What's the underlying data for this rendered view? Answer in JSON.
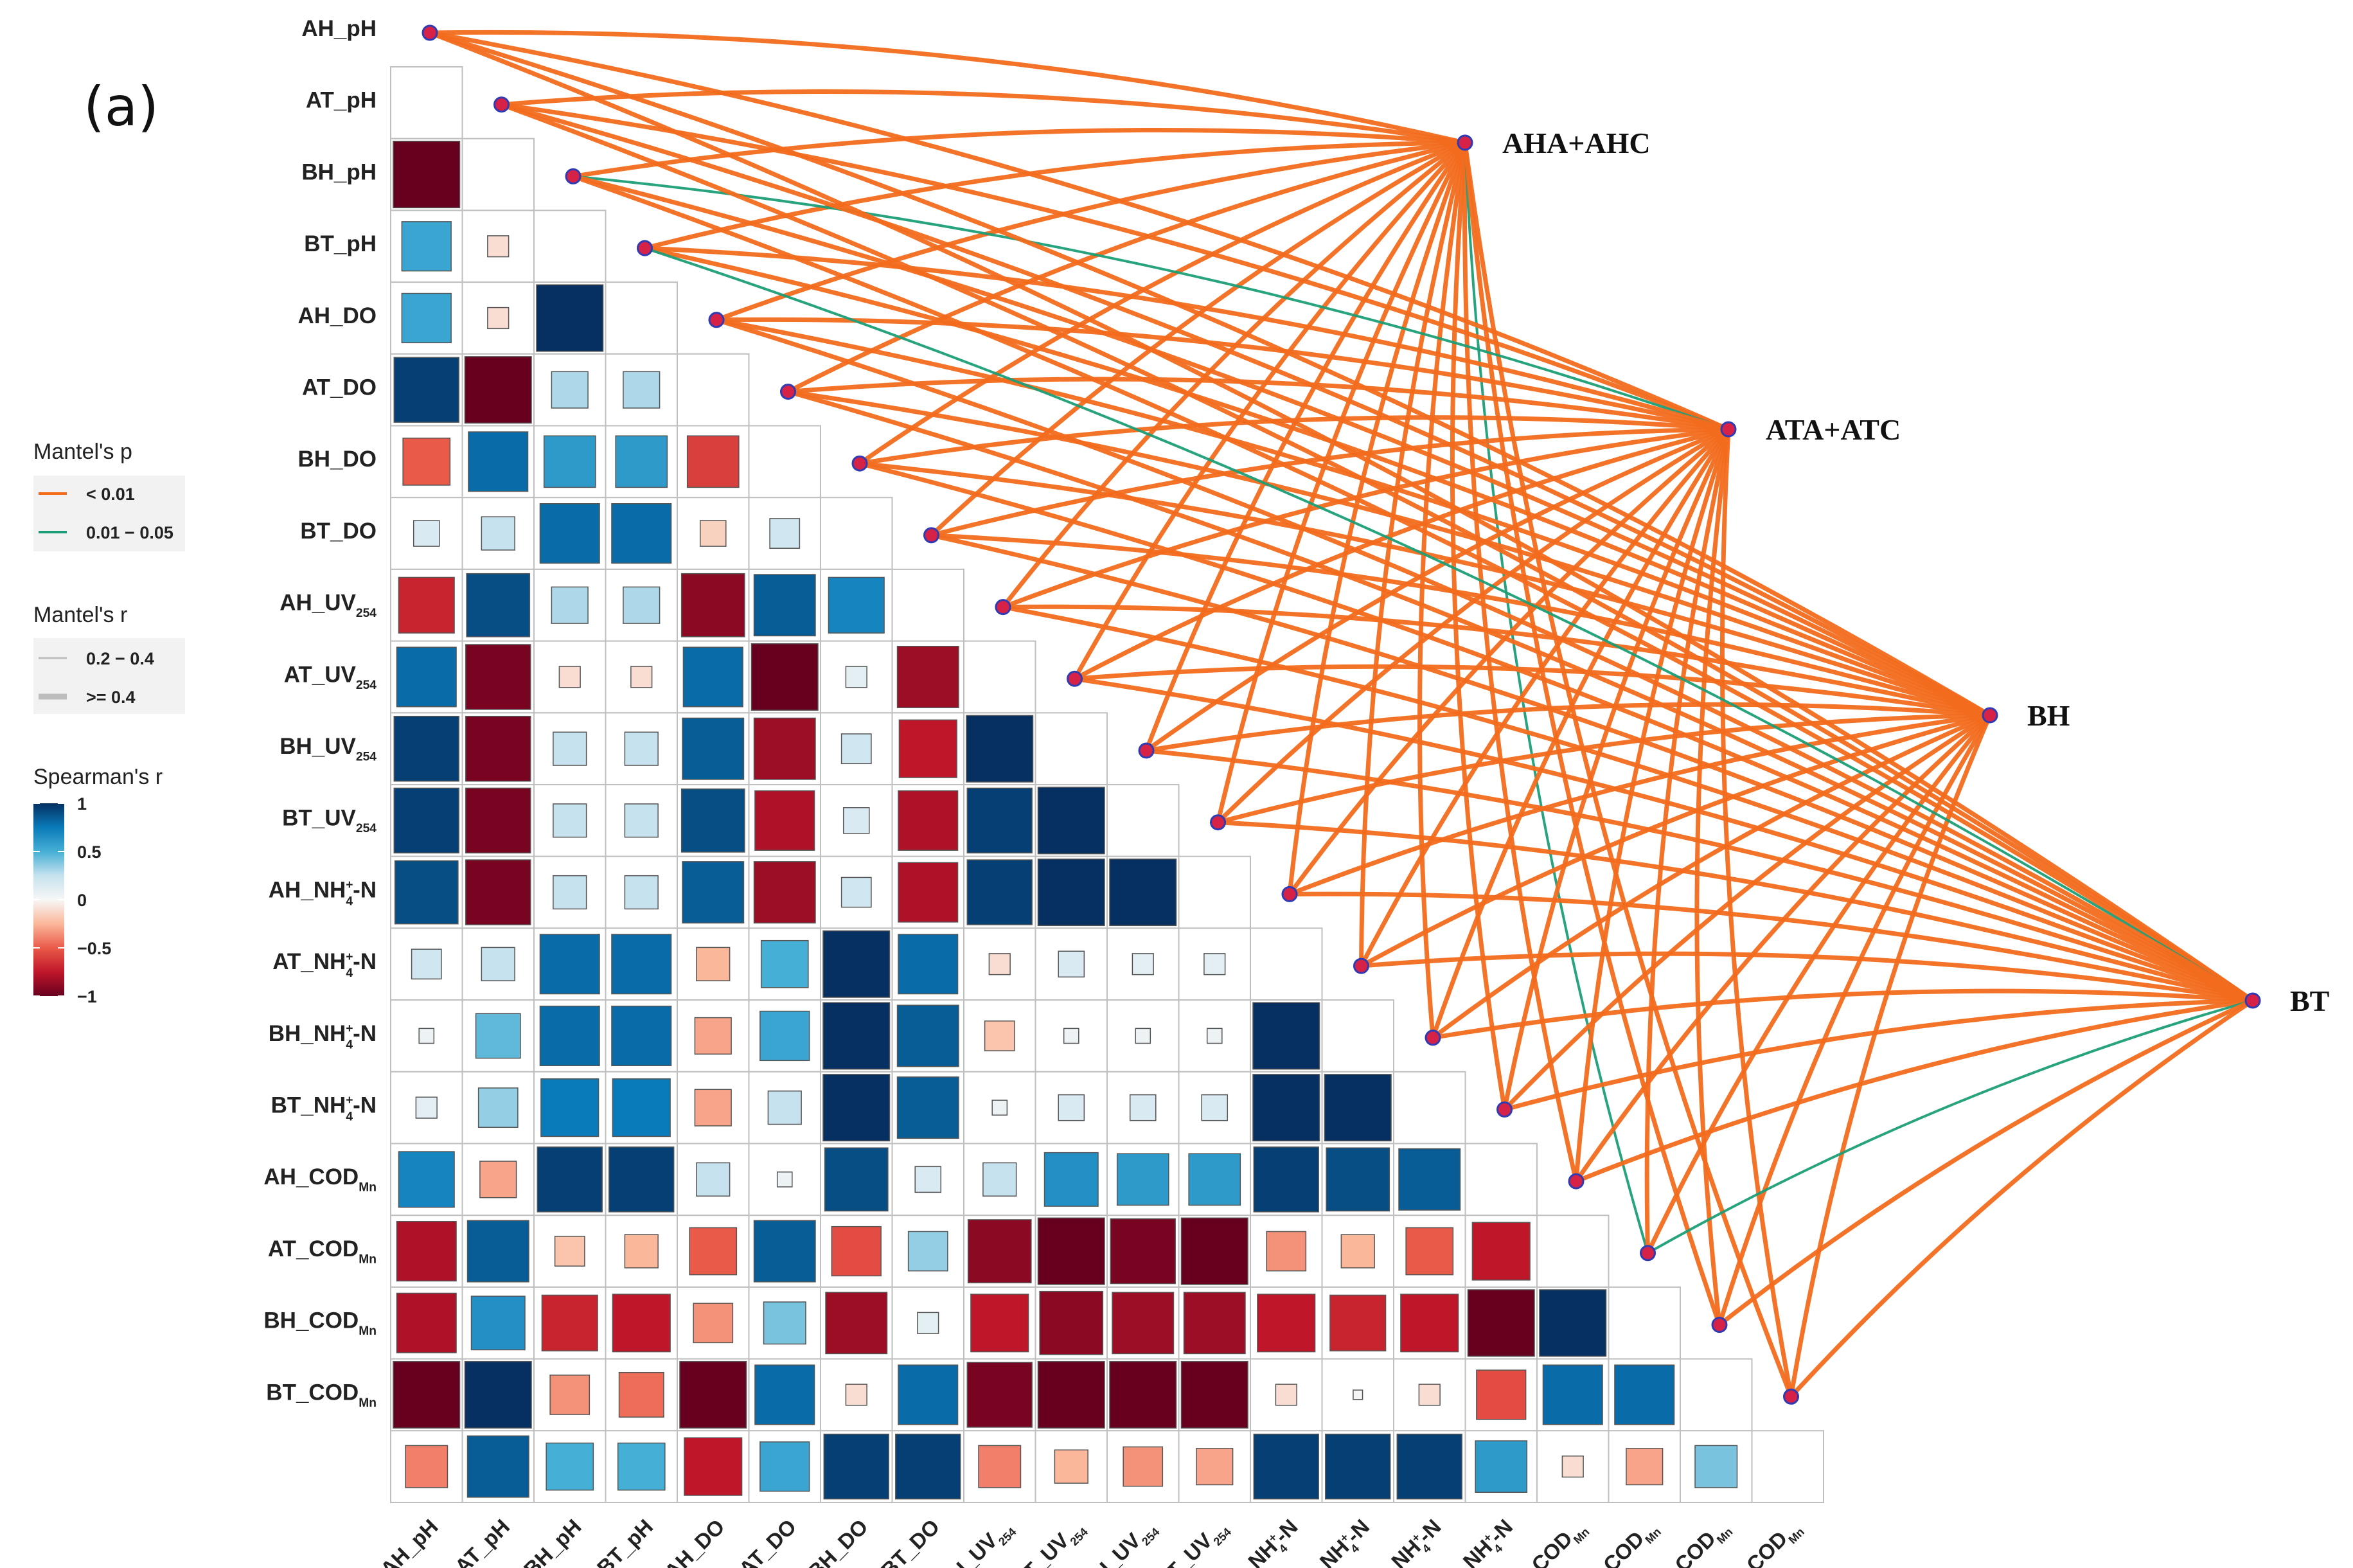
{
  "chart_data": {
    "type": "heatmap",
    "subtype": "mantel-test correlation network over a lower-triangle Spearman correlation matrix",
    "panel_label": "(a)",
    "variables": [
      {
        "pre": "AH_pH",
        "sub": "",
        "sup": "",
        "post": ""
      },
      {
        "pre": "AT_pH",
        "sub": "",
        "sup": "",
        "post": ""
      },
      {
        "pre": "BH_pH",
        "sub": "",
        "sup": "",
        "post": ""
      },
      {
        "pre": "BT_pH",
        "sub": "",
        "sup": "",
        "post": ""
      },
      {
        "pre": "AH_DO",
        "sub": "",
        "sup": "",
        "post": ""
      },
      {
        "pre": "AT_DO",
        "sub": "",
        "sup": "",
        "post": ""
      },
      {
        "pre": "BH_DO",
        "sub": "",
        "sup": "",
        "post": ""
      },
      {
        "pre": "BT_DO",
        "sub": "",
        "sup": "",
        "post": ""
      },
      {
        "pre": "AH_UV",
        "sub": "254",
        "sup": "",
        "post": ""
      },
      {
        "pre": "AT_UV",
        "sub": "254",
        "sup": "",
        "post": ""
      },
      {
        "pre": "BH_UV",
        "sub": "254",
        "sup": "",
        "post": ""
      },
      {
        "pre": "BT_UV",
        "sub": "254",
        "sup": "",
        "post": ""
      },
      {
        "pre": "AH_NH",
        "sub": "4",
        "sup": "+",
        "post": "-N"
      },
      {
        "pre": "AT_NH",
        "sub": "4",
        "sup": "+",
        "post": "-N"
      },
      {
        "pre": "BH_NH",
        "sub": "4",
        "sup": "+",
        "post": "-N"
      },
      {
        "pre": "BT_NH",
        "sub": "4",
        "sup": "+",
        "post": "-N"
      },
      {
        "pre": "AH_COD",
        "sub": "Mn",
        "sup": "",
        "post": ""
      },
      {
        "pre": "AT_COD",
        "sub": "Mn",
        "sup": "",
        "post": ""
      },
      {
        "pre": "BH_COD",
        "sub": "Mn",
        "sup": "",
        "post": ""
      },
      {
        "pre": "BT_COD",
        "sub": "Mn",
        "sup": "",
        "post": ""
      }
    ],
    "spearman_r_lower_triangle": [
      [],
      [
        -1.0
      ],
      [
        0.55,
        -0.1
      ],
      [
        0.55,
        -0.1,
        1.0
      ],
      [
        0.95,
        -1.0,
        0.3,
        0.3
      ],
      [
        -0.5,
        0.8,
        0.6,
        0.6,
        -0.6
      ],
      [
        0.15,
        0.25,
        0.8,
        0.8,
        -0.15,
        0.2
      ],
      [
        -0.7,
        0.9,
        0.3,
        0.3,
        -0.9,
        0.85,
        0.7
      ],
      [
        0.8,
        -0.95,
        -0.1,
        -0.1,
        0.8,
        -1.0,
        0.1,
        -0.85
      ],
      [
        0.95,
        -0.95,
        0.25,
        0.25,
        0.85,
        -0.85,
        0.2,
        -0.75,
        1.0
      ],
      [
        0.95,
        -0.95,
        0.25,
        0.25,
        0.9,
        -0.8,
        0.15,
        -0.8,
        0.95,
        1.0
      ],
      [
        0.9,
        -0.95,
        0.25,
        0.25,
        0.85,
        -0.85,
        0.2,
        -0.8,
        0.95,
        1.0,
        1.0
      ],
      [
        0.2,
        0.25,
        0.8,
        0.8,
        -0.25,
        0.5,
        1.0,
        0.8,
        -0.1,
        0.15,
        0.1,
        0.1
      ],
      [
        0.05,
        0.45,
        0.8,
        0.8,
        -0.3,
        0.55,
        1.0,
        0.85,
        -0.2,
        0.05,
        0.05,
        0.05,
        1.0
      ],
      [
        0.1,
        0.35,
        0.75,
        0.75,
        -0.3,
        0.25,
        1.0,
        0.85,
        0.05,
        0.15,
        0.15,
        0.15,
        1.0,
        1.0
      ],
      [
        0.7,
        -0.3,
        0.95,
        0.95,
        0.25,
        0.05,
        0.9,
        0.15,
        0.25,
        0.65,
        0.6,
        0.6,
        0.95,
        0.9,
        0.85
      ],
      [
        -0.8,
        0.85,
        -0.2,
        -0.25,
        -0.5,
        0.85,
        -0.55,
        0.35,
        -0.9,
        -1.0,
        -0.95,
        -1.0,
        -0.35,
        -0.25,
        -0.5,
        -0.75
      ],
      [
        -0.8,
        0.65,
        -0.7,
        -0.75,
        -0.35,
        0.4,
        -0.85,
        0.1,
        -0.75,
        -0.9,
        -0.85,
        -0.85,
        -0.75,
        -0.7,
        -0.75,
        -1.0,
        1.0
      ],
      [
        -1.0,
        1.0,
        -0.35,
        -0.45,
        -1.0,
        0.8,
        -0.1,
        0.8,
        -0.95,
        -1.0,
        -1.0,
        -1.0,
        -0.1,
        0.02,
        -0.1,
        -0.55,
        0.8,
        0.8
      ],
      [
        -0.4,
        0.85,
        0.5,
        0.5,
        -0.75,
        0.55,
        0.95,
        0.95,
        -0.4,
        -0.25,
        -0.35,
        -0.3,
        0.95,
        0.95,
        0.95,
        0.6,
        -0.1,
        -0.3,
        0.4
      ]
    ],
    "targets": [
      {
        "name": "AHA+AHC",
        "edges": [
          [
            0,
            0
          ],
          [
            1,
            0
          ],
          [
            2,
            0
          ],
          [
            3,
            0
          ],
          [
            4,
            0
          ],
          [
            5,
            0
          ],
          [
            6,
            0
          ],
          [
            7,
            0
          ],
          [
            8,
            0
          ],
          [
            9,
            0
          ],
          [
            10,
            0
          ],
          [
            11,
            0
          ],
          [
            12,
            0
          ],
          [
            13,
            0
          ],
          [
            14,
            0
          ],
          [
            15,
            0
          ],
          [
            16,
            0
          ],
          [
            17,
            1
          ],
          [
            18,
            0
          ],
          [
            19,
            0
          ]
        ]
      },
      {
        "name": "ATA+ATC",
        "edges": [
          [
            0,
            0
          ],
          [
            1,
            0
          ],
          [
            2,
            1
          ],
          [
            3,
            0
          ],
          [
            4,
            0
          ],
          [
            5,
            0
          ],
          [
            6,
            0
          ],
          [
            7,
            0
          ],
          [
            8,
            0
          ],
          [
            9,
            0
          ],
          [
            10,
            0
          ],
          [
            11,
            0
          ],
          [
            12,
            0
          ],
          [
            13,
            0
          ],
          [
            14,
            0
          ],
          [
            15,
            0
          ],
          [
            16,
            0
          ],
          [
            17,
            0
          ],
          [
            18,
            0
          ],
          [
            19,
            0
          ]
        ]
      },
      {
        "name": "BH",
        "edges": [
          [
            0,
            0
          ],
          [
            1,
            0
          ],
          [
            2,
            0
          ],
          [
            3,
            0
          ],
          [
            4,
            0
          ],
          [
            5,
            0
          ],
          [
            6,
            0
          ],
          [
            7,
            0
          ],
          [
            8,
            0
          ],
          [
            9,
            0
          ],
          [
            10,
            0
          ],
          [
            11,
            0
          ],
          [
            12,
            0
          ],
          [
            13,
            0
          ],
          [
            14,
            0
          ],
          [
            15,
            0
          ],
          [
            16,
            0
          ],
          [
            17,
            0
          ],
          [
            18,
            0
          ],
          [
            19,
            0
          ]
        ]
      },
      {
        "name": "BT",
        "edges": [
          [
            0,
            0
          ],
          [
            1,
            0
          ],
          [
            2,
            0
          ],
          [
            3,
            1
          ],
          [
            4,
            0
          ],
          [
            5,
            0
          ],
          [
            6,
            0
          ],
          [
            7,
            0
          ],
          [
            8,
            0
          ],
          [
            9,
            0
          ],
          [
            10,
            0
          ],
          [
            11,
            0
          ],
          [
            12,
            0
          ],
          [
            13,
            0
          ],
          [
            14,
            0
          ],
          [
            15,
            0
          ],
          [
            16,
            0
          ],
          [
            17,
            1
          ],
          [
            18,
            0
          ],
          [
            19,
            0
          ]
        ]
      }
    ],
    "edge_style_note": "edges value pairs = [variable index, Mantel's p category index]; all edges drawn at Mantel's r >= 0.4",
    "legend": {
      "p_title": "Mantel's p",
      "p_items": [
        {
          "label": "< 0.01",
          "color": "#F26B1D"
        },
        {
          "label": "0.01 − 0.05",
          "color": "#1B9E77"
        }
      ],
      "r_title": "Mantel's r",
      "r_items": [
        {
          "label": "0.2 − 0.4",
          "width": "thin"
        },
        {
          "label": ">= 0.4",
          "width": "thick"
        }
      ],
      "s_title": "Spearman's r",
      "s_ticks": [
        {
          "v": 1,
          "label": "1"
        },
        {
          "v": 0.5,
          "label": "0.5"
        },
        {
          "v": 0,
          "label": "0"
        },
        {
          "v": -0.5,
          "label": "−0.5"
        },
        {
          "v": -1,
          "label": "−1"
        }
      ]
    },
    "colorscale": {
      "stops": [
        [
          -1,
          "#67001F"
        ],
        [
          -0.75,
          "#C0162A"
        ],
        [
          -0.5,
          "#EA5A48"
        ],
        [
          -0.25,
          "#FBB79A"
        ],
        [
          0,
          "#F7F7F7"
        ],
        [
          0.25,
          "#C6E2EE"
        ],
        [
          0.5,
          "#46AFD5"
        ],
        [
          0.75,
          "#0A7BBA"
        ],
        [
          1,
          "#053061"
        ]
      ]
    },
    "colors": {
      "node_fill": "#D62246",
      "node_stroke": "#2E3BB5",
      "grid": "#BFBFBF"
    }
  }
}
